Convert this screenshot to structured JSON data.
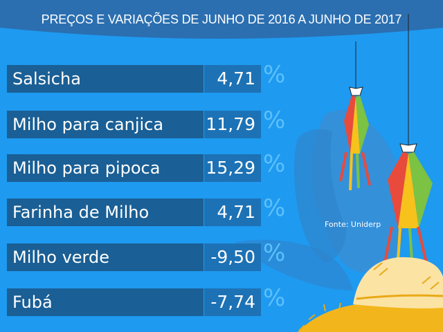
{
  "title": "PREÇOS E VARIAÇÕES DE JUNHO DE 2016 A JUNHO DE 2017",
  "unit": "%",
  "items": [
    {
      "label": "Salsicha",
      "value": "4,71"
    },
    {
      "label": "Milho para canjica",
      "value": "11,79"
    },
    {
      "label": "Milho para pipoca",
      "value": "15,29"
    },
    {
      "label": "Farinha de Milho",
      "value": "4,71"
    },
    {
      "label": "Milho verde",
      "value": "-9,50"
    },
    {
      "label": "Fubá",
      "value": "-7,74"
    }
  ],
  "source": "Fonte: Uniderp",
  "colors": {
    "background": "#1e9af0",
    "label_bar": "#1a5f95",
    "value_bar": "#1d72b5",
    "percent": "#5cc0fb",
    "header": "#2b6fb1"
  },
  "decorations": [
    "festa-junina-lantern-icon",
    "festa-junina-lantern-icon",
    "corn-cob-icon",
    "straw-hat-icon"
  ]
}
